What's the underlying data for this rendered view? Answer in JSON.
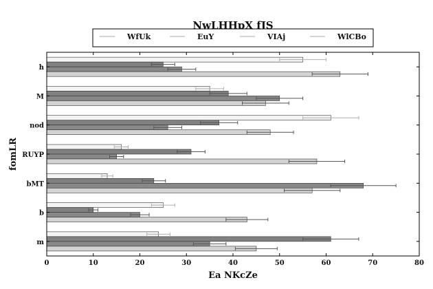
{
  "chart_data": {
    "type": "bar",
    "orientation": "horizontal",
    "title": "NwLHHpX fJS",
    "xlabel": "Ea NKcZe",
    "ylabel": "fomLR",
    "xlim": [
      0,
      80
    ],
    "xticks": [
      0,
      10,
      20,
      30,
      40,
      50,
      60,
      70,
      80
    ],
    "categories": [
      "h",
      "M",
      "nod",
      "RUYP",
      "bMT",
      "b",
      "m"
    ],
    "series": [
      {
        "name": "WfUk",
        "color": "#f4f4f4",
        "values": [
          55,
          35,
          61,
          16,
          13,
          25,
          24
        ],
        "errors": [
          5,
          3,
          6,
          1.5,
          1.2,
          2.5,
          2.5
        ]
      },
      {
        "name": "EuY",
        "color": "#808080",
        "values": [
          25,
          39,
          37,
          31,
          23,
          10,
          61
        ],
        "errors": [
          2.5,
          4,
          4,
          3,
          2.5,
          1,
          6
        ]
      },
      {
        "name": "VIAj",
        "color": "#888888",
        "values": [
          29,
          50,
          26,
          15,
          68,
          20,
          35
        ],
        "errors": [
          3,
          5,
          3,
          1.5,
          7,
          2,
          3.5
        ]
      },
      {
        "name": "WlCBo",
        "color": "#d3d3d3",
        "values": [
          63,
          47,
          48,
          58,
          57,
          43,
          45
        ],
        "errors": [
          6,
          5,
          5,
          6,
          6,
          4.5,
          4.5
        ]
      }
    ],
    "grid": false,
    "legend_position": "top-center"
  }
}
